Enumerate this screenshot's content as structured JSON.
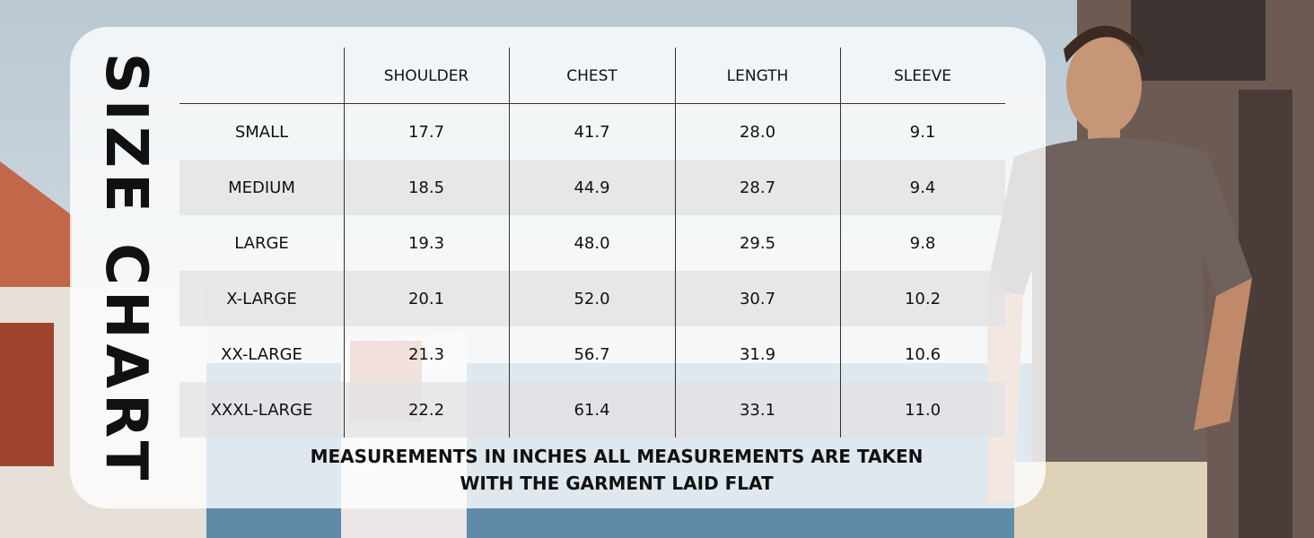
{
  "title": "SIZE CHART",
  "table": {
    "columns": [
      "SHOULDER",
      "CHEST",
      "LENGTH",
      "SLEEVE"
    ],
    "rows": [
      {
        "size": "SMALL",
        "values": [
          "17.7",
          "41.7",
          "28.0",
          "9.1"
        ]
      },
      {
        "size": "MEDIUM",
        "values": [
          "18.5",
          "44.9",
          "28.7",
          "9.4"
        ]
      },
      {
        "size": "LARGE",
        "values": [
          "19.3",
          "48.0",
          "29.5",
          "9.8"
        ]
      },
      {
        "size": "X-LARGE",
        "values": [
          "20.1",
          "52.0",
          "30.7",
          "10.2"
        ]
      },
      {
        "size": "XX-LARGE",
        "values": [
          "21.3",
          "56.7",
          "31.9",
          "10.6"
        ]
      },
      {
        "size": "XXXL-LARGE",
        "values": [
          "22.2",
          "61.4",
          "33.1",
          "11.0"
        ]
      }
    ]
  },
  "note": {
    "lines": [
      "MEASUREMENTS IN INCHES ALL MEASUREMENTS ARE TAKEN",
      "WITH THE GARMENT LAID FLAT"
    ]
  }
}
